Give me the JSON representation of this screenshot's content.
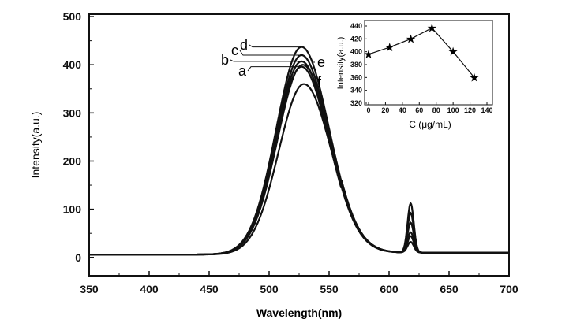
{
  "chart_data": [
    {
      "type": "line",
      "title": "",
      "xlabel": "Wavelength(nm)",
      "ylabel": "Intensity(a.u.)",
      "xlim": [
        350,
        700
      ],
      "ylim": [
        -38,
        505
      ],
      "xticks": [
        350,
        400,
        450,
        500,
        550,
        600,
        650,
        700
      ],
      "yticks": [
        0,
        100,
        200,
        300,
        400,
        500
      ],
      "grid": false,
      "series": [
        {
          "name": "a",
          "peak_wavelength": 527,
          "peak_intensity": 396,
          "second_peak_wavelength": 618,
          "second_peak_intensity": 42
        },
        {
          "name": "b",
          "peak_wavelength": 527,
          "peak_intensity": 407,
          "second_peak_wavelength": 618,
          "second_peak_intensity": 50
        },
        {
          "name": "c",
          "peak_wavelength": 527,
          "peak_intensity": 420,
          "second_peak_wavelength": 618,
          "second_peak_intensity": 70
        },
        {
          "name": "d",
          "peak_wavelength": 527,
          "peak_intensity": 437,
          "second_peak_wavelength": 618,
          "second_peak_intensity": 110
        },
        {
          "name": "e",
          "peak_wavelength": 528,
          "peak_intensity": 400,
          "second_peak_wavelength": 618,
          "second_peak_intensity": 90
        },
        {
          "name": "f",
          "peak_wavelength": 529,
          "peak_intensity": 360,
          "second_peak_wavelength": 618,
          "second_peak_intensity": 30
        }
      ]
    },
    {
      "type": "line",
      "title": "",
      "xlabel": "C (μg/mL)",
      "ylabel": "Intensity(a.u.)",
      "xlim": [
        0,
        140
      ],
      "ylim": [
        320,
        445
      ],
      "xticks": [
        0,
        20,
        40,
        60,
        80,
        100,
        120,
        140
      ],
      "yticks": [
        320,
        340,
        360,
        380,
        400,
        420,
        440
      ],
      "marker": "star",
      "x": [
        0,
        25,
        50,
        75,
        100,
        125
      ],
      "y": [
        396,
        407,
        420,
        437,
        400,
        360
      ]
    }
  ]
}
